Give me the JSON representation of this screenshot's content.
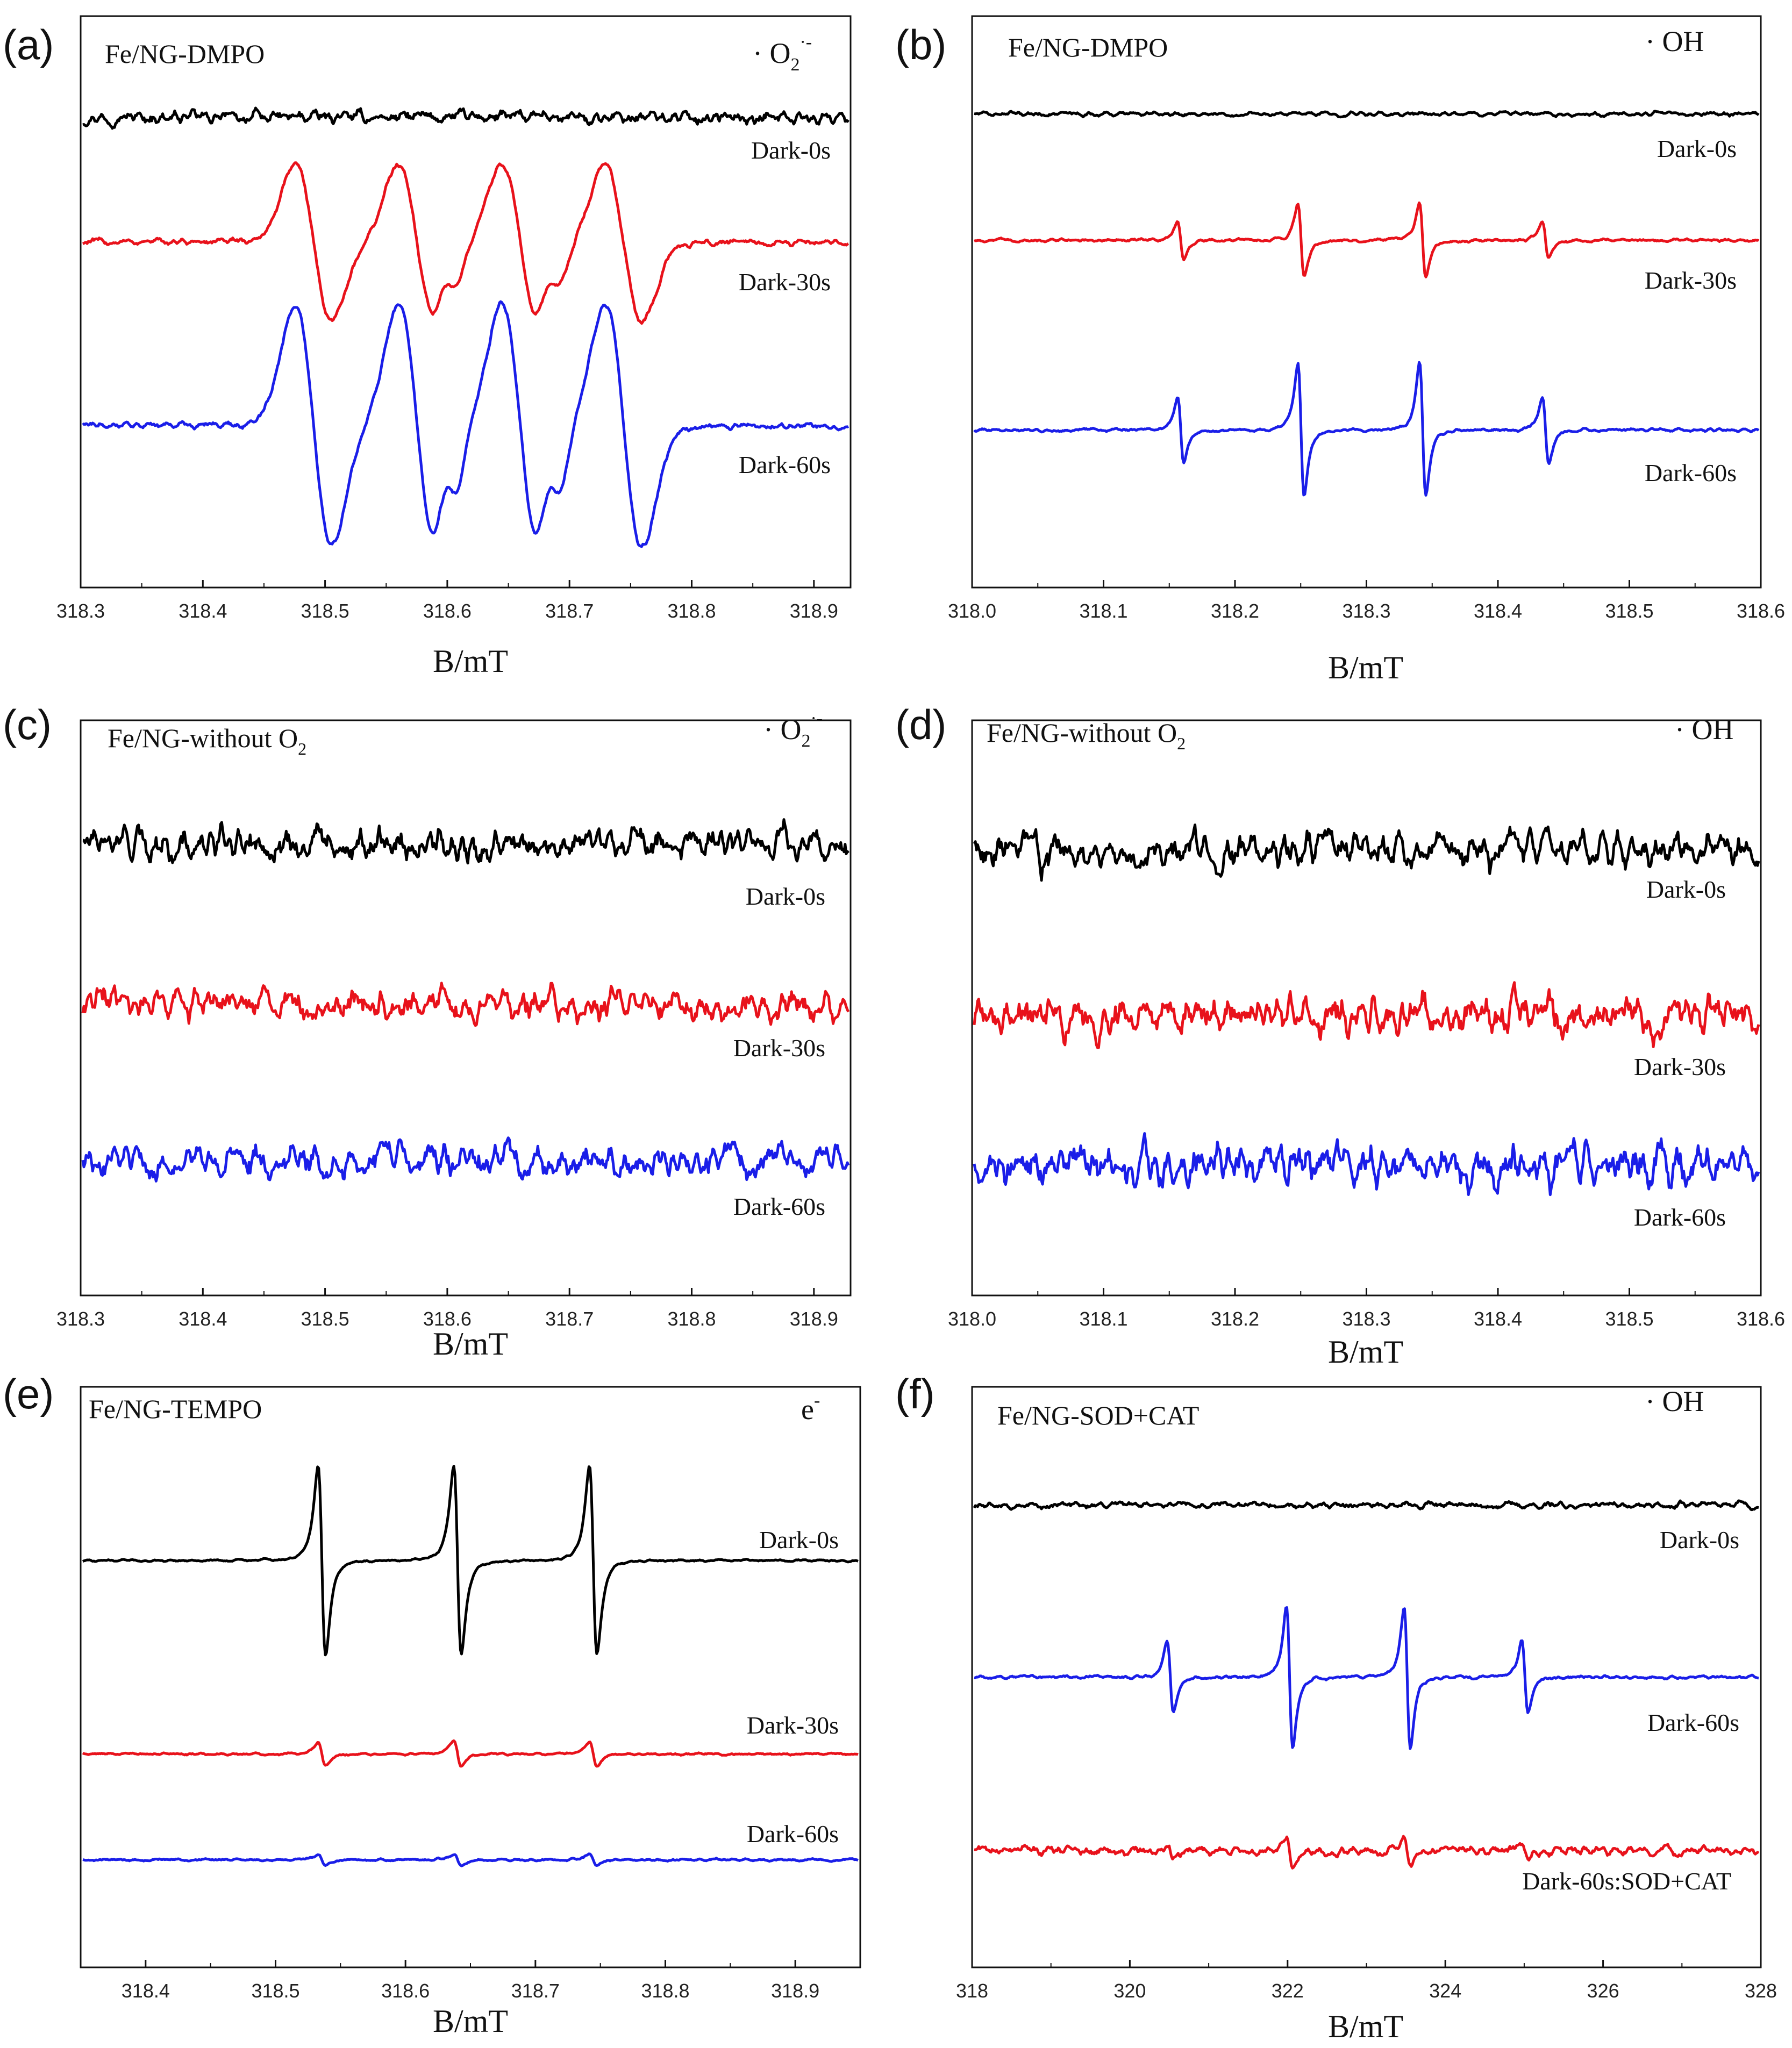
{
  "colors": {
    "black": "#000000",
    "red": "#e8121b",
    "blue": "#1a1ee8"
  },
  "chart_data": [
    {
      "panel": "(a)",
      "type": "line",
      "title": "Fe/NG-DMPO",
      "radical": "· O2·-",
      "radical_parts": {
        "dot": "·",
        "main": "O",
        "sub": "2",
        "sup": "·-"
      },
      "xlabel": "B/mT",
      "xlim": [
        318.3,
        318.93
      ],
      "xticks": [
        "318.3",
        "318.4",
        "318.5",
        "318.6",
        "318.7",
        "318.8",
        "318.9"
      ],
      "spectrum": {
        "kind": "dmpo_o2",
        "centers": [
          318.49,
          318.575,
          318.66,
          318.745
        ],
        "slope": "downward"
      },
      "series": [
        {
          "name": "Dark-0s",
          "color": "black",
          "amplitude": 0,
          "noise": 0.025
        },
        {
          "name": "Dark-30s",
          "color": "red",
          "amplitude": 0.55,
          "noise": 0.012
        },
        {
          "name": "Dark-60s",
          "color": "blue",
          "amplitude": 0.85,
          "noise": 0.012
        }
      ]
    },
    {
      "panel": "(b)",
      "type": "line",
      "title": "Fe/NG-DMPO",
      "radical": "· OH",
      "radical_parts": {
        "dot": "·",
        "main": "OH",
        "sub": "",
        "sup": ""
      },
      "xlabel": "B/mT",
      "xlim": [
        318.0,
        318.6
      ],
      "xticks": [
        "318.0",
        "318.1",
        "318.2",
        "318.3",
        "318.4",
        "318.5",
        "318.6"
      ],
      "spectrum": {
        "kind": "quartet",
        "centers": [
          318.158,
          318.25,
          318.343,
          318.437
        ],
        "ratio": [
          1,
          2,
          2,
          1
        ]
      },
      "series": [
        {
          "name": "Dark-0s",
          "color": "black",
          "amplitude": 0,
          "noise": 0.008
        },
        {
          "name": "Dark-30s",
          "color": "red",
          "amplitude": 0.4,
          "noise": 0.006
        },
        {
          "name": "Dark-60s",
          "color": "blue",
          "amplitude": 0.72,
          "noise": 0.006
        }
      ]
    },
    {
      "panel": "(c)",
      "type": "line",
      "title": "Fe/NG-without O2",
      "radical": "· O2·-",
      "title_parts": {
        "main": "Fe/NG-without O",
        "sub": "2"
      },
      "radical_parts": {
        "dot": "·",
        "main": "O",
        "sub": "2",
        "sup": "·-"
      },
      "xlabel": "B/mT",
      "xlim": [
        318.3,
        318.93
      ],
      "xticks": [
        "318.3",
        "318.4",
        "318.5",
        "318.6",
        "318.7",
        "318.8",
        "318.9"
      ],
      "spectrum": {
        "kind": "noise"
      },
      "series": [
        {
          "name": "Dark-0s",
          "color": "black",
          "amplitude": 0,
          "noise": 0.06
        },
        {
          "name": "Dark-30s",
          "color": "red",
          "amplitude": 0,
          "noise": 0.06
        },
        {
          "name": "Dark-60s",
          "color": "blue",
          "amplitude": 0,
          "noise": 0.06
        }
      ]
    },
    {
      "panel": "(d)",
      "type": "line",
      "title": "Fe/NG-without O2",
      "radical": "· OH",
      "title_parts": {
        "main": "Fe/NG-without O",
        "sub": "2"
      },
      "radical_parts": {
        "dot": "·",
        "main": "OH",
        "sub": "",
        "sup": ""
      },
      "xlabel": "B/mT",
      "xlim": [
        318.0,
        318.6
      ],
      "xticks": [
        "318.0",
        "318.1",
        "318.2",
        "318.3",
        "318.4",
        "318.5",
        "318.6"
      ],
      "spectrum": {
        "kind": "noise"
      },
      "series": [
        {
          "name": "Dark-0s",
          "color": "black",
          "amplitude": 0,
          "noise": 0.07
        },
        {
          "name": "Dark-30s",
          "color": "red",
          "amplitude": 0,
          "noise": 0.08
        },
        {
          "name": "Dark-60s",
          "color": "blue",
          "amplitude": 0,
          "noise": 0.08
        }
      ]
    },
    {
      "panel": "(e)",
      "type": "line",
      "title": "Fe/NG-TEMPO",
      "radical": "e-",
      "radical_parts": {
        "dot": "",
        "main": "e",
        "sub": "",
        "sup": "-"
      },
      "xlabel": "B/mT",
      "xlim": [
        318.35,
        318.95
      ],
      "xticks": [
        "318.4",
        "318.5",
        "318.6",
        "318.7",
        "318.8",
        "318.9"
      ],
      "xtick_values": [
        318.4,
        318.5,
        318.6,
        318.7,
        318.8,
        318.9
      ],
      "spectrum": {
        "kind": "triplet",
        "centers": [
          318.535,
          318.64,
          318.745
        ]
      },
      "series": [
        {
          "name": "Dark-0s",
          "color": "black",
          "amplitude": 1.0,
          "noise": 0.004
        },
        {
          "name": "Dark-30s",
          "color": "red",
          "amplitude": 0.13,
          "noise": 0.004
        },
        {
          "name": "Dark-60s",
          "color": "blue",
          "amplitude": 0.06,
          "noise": 0.004
        }
      ]
    },
    {
      "panel": "(f)",
      "type": "line",
      "title": "Fe/NG-SOD+CAT",
      "radical": "· OH",
      "radical_parts": {
        "dot": "·",
        "main": "OH",
        "sub": "",
        "sup": ""
      },
      "xlabel": "B/mT",
      "xlim": [
        318,
        328
      ],
      "xticks": [
        "318",
        "320",
        "322",
        "324",
        "326",
        "328"
      ],
      "spectrum": {
        "kind": "quartet",
        "centers": [
          320.5,
          322.02,
          323.52,
          325.02
        ],
        "ratio": [
          1,
          2,
          2,
          1
        ]
      },
      "series": [
        {
          "name": "Dark-0s",
          "color": "black",
          "amplitude": 0,
          "noise": 0.012
        },
        {
          "name": "Dark-60s",
          "color": "blue",
          "amplitude": 0.75,
          "noise": 0.006
        },
        {
          "name": "Dark-60s:SOD+CAT",
          "color": "red",
          "amplitude": 0.14,
          "noise": 0.018
        }
      ]
    }
  ]
}
